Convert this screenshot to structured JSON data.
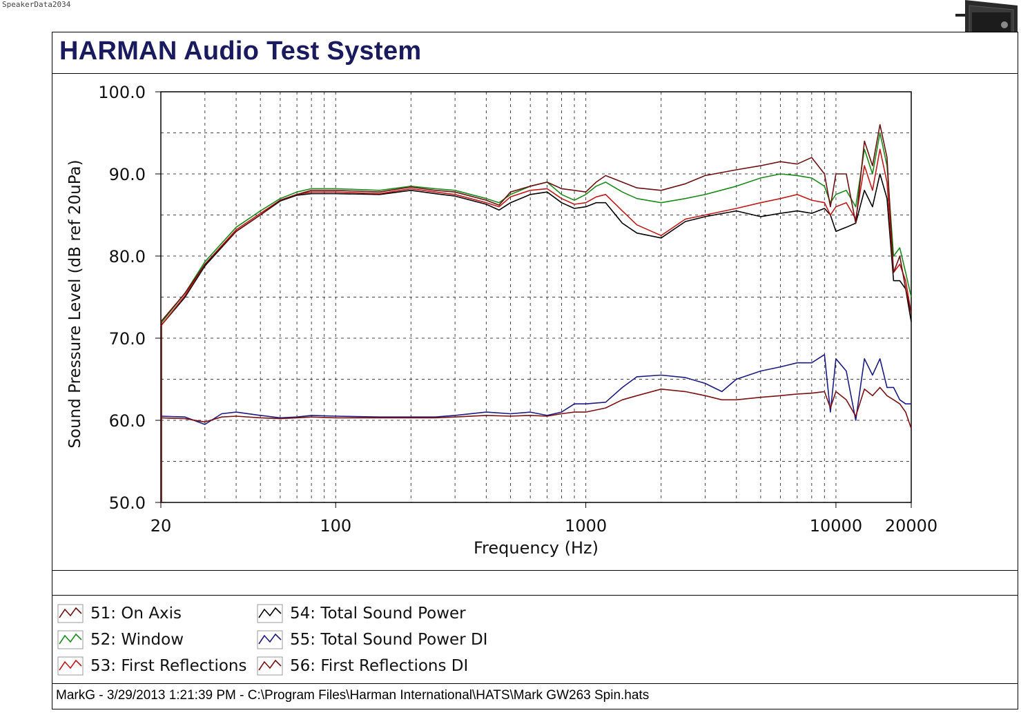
{
  "watermark": "SpeakerData2034",
  "title": "HARMAN Audio Test System",
  "footer": "MarkG - 3/29/2013 1:21:39 PM - C:\\Program Files\\Harman International\\HATS\\Mark GW263 Spin.hats",
  "chart_data": {
    "type": "line",
    "xlabel": "Frequency (Hz)",
    "ylabel": "Sound Pressure Level (dB ref 20uPa)",
    "xscale": "log",
    "xlim": [
      20,
      20000
    ],
    "ylim": [
      50,
      100
    ],
    "xticks": [
      20,
      100,
      1000,
      10000,
      20000
    ],
    "xtick_labels": [
      "20",
      "100",
      "1000",
      "10000",
      "20000"
    ],
    "yticks": [
      50,
      60,
      70,
      80,
      90,
      100
    ],
    "ytick_labels": [
      "50.0",
      "60.0",
      "70.0",
      "80.0",
      "90.0",
      "100.0"
    ],
    "grid": "dashed",
    "legend_position": "bottom",
    "series": [
      {
        "name": "51: On Axis",
        "color": "#6b1010",
        "x": [
          20,
          25,
          30,
          40,
          50,
          60,
          70,
          80,
          100,
          150,
          200,
          250,
          300,
          400,
          450,
          500,
          600,
          700,
          800,
          900,
          1000,
          1100,
          1200,
          1400,
          1600,
          2000,
          2500,
          3000,
          4000,
          5000,
          6000,
          7000,
          8000,
          9000,
          9500,
          10000,
          11000,
          12000,
          13000,
          14000,
          15000,
          16000,
          17000,
          18000,
          19000,
          20000
        ],
        "y": [
          72,
          75.5,
          79,
          83,
          85,
          86.8,
          87.5,
          88,
          88,
          87.8,
          88.4,
          88,
          87.8,
          86.8,
          86.2,
          87.8,
          88.5,
          89,
          88.2,
          88,
          87.8,
          89,
          89.8,
          89,
          88.3,
          88,
          88.8,
          89.8,
          90.5,
          91,
          91.5,
          91.2,
          92,
          90,
          86,
          90,
          90,
          84,
          94,
          91,
          96,
          92,
          78,
          80,
          76,
          73
        ]
      },
      {
        "name": "52: Window",
        "color": "#1a8a1a",
        "x": [
          20,
          25,
          30,
          40,
          50,
          60,
          70,
          80,
          100,
          150,
          200,
          250,
          300,
          400,
          450,
          500,
          600,
          700,
          800,
          900,
          1000,
          1100,
          1200,
          1400,
          1600,
          2000,
          2500,
          3000,
          4000,
          5000,
          6000,
          7000,
          8000,
          9000,
          9500,
          10000,
          11000,
          12000,
          13000,
          14000,
          15000,
          16000,
          17000,
          18000,
          19000,
          20000
        ],
        "y": [
          71.8,
          75.5,
          79.3,
          83.5,
          85.5,
          87,
          87.8,
          88.2,
          88.2,
          88,
          88.5,
          88.2,
          88,
          87,
          86.5,
          87.5,
          88.5,
          89,
          87.5,
          86.8,
          87.5,
          88.5,
          89,
          87.8,
          87,
          86.5,
          87,
          87.5,
          88.5,
          89.5,
          90,
          89.8,
          89.5,
          88.5,
          86.5,
          87.5,
          88,
          86,
          93,
          90,
          95,
          91,
          80,
          81,
          78,
          75
        ]
      },
      {
        "name": "53: First Reflections",
        "color": "#c01818",
        "x": [
          20,
          25,
          30,
          40,
          50,
          60,
          70,
          80,
          100,
          150,
          200,
          250,
          300,
          400,
          450,
          500,
          600,
          700,
          800,
          900,
          1000,
          1100,
          1200,
          1400,
          1600,
          2000,
          2500,
          3000,
          4000,
          5000,
          6000,
          7000,
          8000,
          9000,
          9500,
          10000,
          11000,
          12000,
          13000,
          14000,
          15000,
          16000,
          17000,
          18000,
          19000,
          20000
        ],
        "y": [
          71.5,
          75.2,
          79,
          83.2,
          85.2,
          86.8,
          87.5,
          87.8,
          87.8,
          87.6,
          88.2,
          87.8,
          87.5,
          86.5,
          86,
          87.2,
          88,
          88.2,
          87,
          86.3,
          86.5,
          87.2,
          87.5,
          85.5,
          83.8,
          82.5,
          84.5,
          85,
          85.8,
          86.5,
          87,
          87.5,
          86.8,
          86.5,
          85,
          86,
          86.5,
          84.5,
          91,
          88,
          93,
          89,
          78,
          79,
          77,
          73
        ]
      },
      {
        "name": "54: Total Sound Power",
        "color": "#000000",
        "x": [
          20,
          25,
          30,
          40,
          50,
          60,
          70,
          80,
          100,
          150,
          200,
          250,
          300,
          400,
          450,
          500,
          600,
          700,
          800,
          900,
          1000,
          1100,
          1200,
          1400,
          1600,
          2000,
          2500,
          3000,
          4000,
          5000,
          6000,
          7000,
          8000,
          9000,
          9500,
          10000,
          11000,
          12000,
          13000,
          14000,
          15000,
          16000,
          17000,
          18000,
          19000,
          20000
        ],
        "y": [
          71.5,
          75,
          78.8,
          83,
          85,
          86.7,
          87.4,
          87.6,
          87.6,
          87.5,
          88,
          87.6,
          87.3,
          86.3,
          85.6,
          86.5,
          87.5,
          87.8,
          86.5,
          85.8,
          86,
          86.5,
          86.5,
          84,
          82.8,
          82.2,
          84.2,
          84.8,
          85.5,
          84.8,
          85.2,
          85.5,
          85.2,
          85.8,
          85,
          83,
          83.5,
          84,
          88,
          86,
          90,
          87,
          77,
          77,
          76,
          72
        ]
      },
      {
        "name": "55: Total Sound Power DI",
        "color": "#1a1a80",
        "x": [
          20,
          25,
          30,
          35,
          40,
          50,
          60,
          70,
          80,
          100,
          150,
          200,
          250,
          300,
          400,
          500,
          600,
          700,
          800,
          900,
          1000,
          1200,
          1400,
          1600,
          2000,
          2500,
          3000,
          3500,
          4000,
          5000,
          6000,
          7000,
          8000,
          9000,
          9500,
          10000,
          11000,
          12000,
          13000,
          14000,
          15000,
          16000,
          17000,
          18000,
          19000,
          20000
        ],
        "y": [
          60.5,
          60.4,
          59.5,
          60.8,
          61,
          60.6,
          60.3,
          60.4,
          60.6,
          60.5,
          60.4,
          60.4,
          60.4,
          60.6,
          61,
          60.8,
          61,
          60.6,
          61,
          62,
          62,
          62.2,
          64,
          65.3,
          65.5,
          65.2,
          64.5,
          63.5,
          65,
          66,
          66.5,
          67,
          67,
          68,
          61,
          67.5,
          66,
          60,
          67.5,
          65.5,
          67.5,
          64,
          64,
          62.5,
          62,
          62
        ]
      },
      {
        "name": "56: First Reflections DI",
        "color": "#7a1010",
        "x": [
          20,
          25,
          30,
          35,
          40,
          50,
          60,
          70,
          80,
          100,
          150,
          200,
          250,
          300,
          400,
          500,
          600,
          700,
          800,
          900,
          1000,
          1200,
          1400,
          1600,
          2000,
          2500,
          3000,
          3500,
          4000,
          5000,
          6000,
          7000,
          8000,
          9000,
          9500,
          10000,
          11000,
          12000,
          13000,
          14000,
          15000,
          16000,
          17000,
          18000,
          19000,
          20000
        ],
        "y": [
          60.3,
          60.2,
          59.8,
          60.4,
          60.5,
          60.3,
          60.2,
          60.3,
          60.4,
          60.3,
          60.3,
          60.3,
          60.3,
          60.4,
          60.6,
          60.5,
          60.6,
          60.5,
          60.8,
          61,
          61,
          61.5,
          62.5,
          63,
          63.8,
          63.5,
          63,
          62.5,
          62.5,
          62.8,
          63,
          63.2,
          63.3,
          63.5,
          61.5,
          63.5,
          62.5,
          60.5,
          63.8,
          63,
          64,
          63,
          62.5,
          62,
          61,
          59
        ]
      }
    ]
  }
}
